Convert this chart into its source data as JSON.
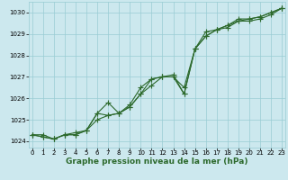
{
  "hours": [
    0,
    1,
    2,
    3,
    4,
    5,
    6,
    7,
    8,
    9,
    10,
    11,
    12,
    13,
    14,
    15,
    16,
    17,
    18,
    19,
    20,
    21,
    22,
    23
  ],
  "line1": [
    1024.3,
    1024.3,
    1024.1,
    1024.3,
    1024.3,
    1024.5,
    1025.0,
    1025.2,
    1025.3,
    1025.6,
    1026.2,
    1026.6,
    1027.0,
    1027.0,
    1026.5,
    1028.3,
    1028.9,
    1029.2,
    1029.3,
    1029.6,
    1029.6,
    1029.7,
    1029.9,
    1030.2
  ],
  "line2": [
    1024.3,
    1024.2,
    1024.1,
    1024.3,
    1024.3,
    1024.5,
    1025.3,
    1025.8,
    1025.3,
    1025.6,
    1026.2,
    1026.9,
    1027.0,
    1027.0,
    1026.2,
    1028.3,
    1028.9,
    1029.2,
    1029.4,
    1029.6,
    1029.7,
    1029.8,
    1030.0,
    1030.2
  ],
  "line3": [
    1024.3,
    1024.2,
    1024.1,
    1024.3,
    1024.4,
    1024.5,
    1025.3,
    1025.2,
    1025.3,
    1025.7,
    1026.5,
    1026.9,
    1027.0,
    1027.1,
    1026.2,
    1028.3,
    1029.1,
    1029.2,
    1029.4,
    1029.7,
    1029.7,
    1029.8,
    1030.0,
    1030.2
  ],
  "ylim": [
    1023.7,
    1030.5
  ],
  "xlim": [
    -0.3,
    23.3
  ],
  "yticks": [
    1024,
    1025,
    1026,
    1027,
    1028,
    1029,
    1030
  ],
  "xticks": [
    0,
    1,
    2,
    3,
    4,
    5,
    6,
    7,
    8,
    9,
    10,
    11,
    12,
    13,
    14,
    15,
    16,
    17,
    18,
    19,
    20,
    21,
    22,
    23
  ],
  "xlabel": "Graphe pression niveau de la mer (hPa)",
  "line_color": "#2d6a2d",
  "bg_color": "#cce8ee",
  "grid_color": "#99ccd4",
  "marker": "+",
  "markersize": 4,
  "linewidth": 0.8,
  "xlabel_fontsize": 6.5,
  "tick_fontsize": 5.0
}
